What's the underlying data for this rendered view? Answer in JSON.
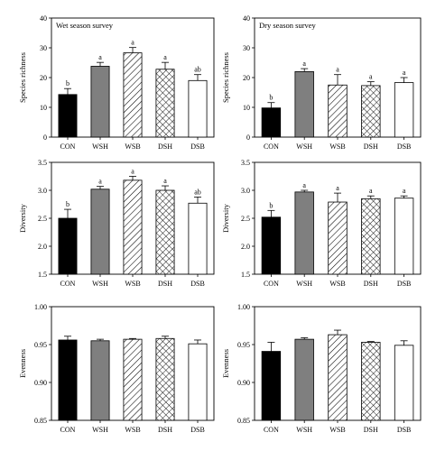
{
  "categories": [
    "CON",
    "WSH",
    "WSB",
    "DSH",
    "DSB"
  ],
  "colors": {
    "CON": "#000000",
    "WSH": "#7f7f7f",
    "WSB": "#ffffff",
    "DSH": "#ffffff",
    "DSB": "#ffffff"
  },
  "patterns": {
    "CON": "solid",
    "WSH": "solid-gray",
    "WSB": "diagonal-hatch",
    "DSH": "crosshatch",
    "DSB": "none"
  },
  "chart_data": [
    {
      "type": "bar",
      "title": "Wet season survey",
      "ylabel": "Species richness",
      "ylim": [
        0,
        40
      ],
      "yticks": [
        "0",
        "10",
        "20",
        "30",
        "40"
      ],
      "categories": [
        "CON",
        "WSH",
        "WSB",
        "DSH",
        "DSB"
      ],
      "values": [
        14.3,
        23.8,
        28.3,
        22.8,
        19.0
      ],
      "errors": [
        2.0,
        1.3,
        1.8,
        2.3,
        2.0
      ],
      "letters": [
        "b",
        "a",
        "a",
        "a",
        "ab"
      ]
    },
    {
      "type": "bar",
      "title": "Dry season survey",
      "ylabel": "Species richness",
      "ylim": [
        0,
        40
      ],
      "yticks": [
        "0",
        "10",
        "20",
        "30",
        "40"
      ],
      "categories": [
        "CON",
        "WSH",
        "WSB",
        "DSH",
        "DSB"
      ],
      "values": [
        9.8,
        22.0,
        17.5,
        17.3,
        18.3
      ],
      "errors": [
        1.8,
        1.0,
        3.5,
        1.3,
        1.7
      ],
      "letters": [
        "b",
        "a",
        "a",
        "a",
        "a"
      ]
    },
    {
      "type": "bar",
      "title": "",
      "ylabel": "Diversity",
      "ylim": [
        1.5,
        3.5
      ],
      "yticks": [
        "1.5",
        "2.0",
        "2.5",
        "3.0",
        "3.5"
      ],
      "categories": [
        "CON",
        "WSH",
        "WSB",
        "DSH",
        "DSB"
      ],
      "values": [
        2.5,
        3.02,
        3.18,
        3.0,
        2.77
      ],
      "errors": [
        0.16,
        0.05,
        0.07,
        0.08,
        0.11
      ],
      "letters": [
        "b",
        "a",
        "a",
        "a",
        "ab"
      ]
    },
    {
      "type": "bar",
      "title": "",
      "ylabel": "Diversity",
      "ylim": [
        1.5,
        3.5
      ],
      "yticks": [
        "1.5",
        "2.0",
        "2.5",
        "3.0",
        "3.5"
      ],
      "categories": [
        "CON",
        "WSH",
        "WSB",
        "DSH",
        "DSB"
      ],
      "values": [
        2.52,
        2.97,
        2.79,
        2.85,
        2.86
      ],
      "errors": [
        0.12,
        0.03,
        0.16,
        0.05,
        0.04
      ],
      "letters": [
        "b",
        "a",
        "a",
        "a",
        "a"
      ]
    },
    {
      "type": "bar",
      "title": "",
      "ylabel": "Evenness",
      "ylim": [
        0.85,
        1.0
      ],
      "yticks": [
        "0.85",
        "0.90",
        "0.95",
        "1.00"
      ],
      "categories": [
        "CON",
        "WSH",
        "WSB",
        "DSH",
        "DSB"
      ],
      "values": [
        0.956,
        0.955,
        0.957,
        0.958,
        0.951
      ],
      "errors": [
        0.005,
        0.002,
        0.001,
        0.003,
        0.005
      ],
      "letters": [
        "",
        "",
        "",
        "",
        ""
      ]
    },
    {
      "type": "bar",
      "title": "",
      "ylabel": "Evenness",
      "ylim": [
        0.85,
        1.0
      ],
      "yticks": [
        "0.85",
        "0.90",
        "0.95",
        "1.00"
      ],
      "categories": [
        "CON",
        "WSH",
        "WSB",
        "DSH",
        "DSB"
      ],
      "values": [
        0.941,
        0.957,
        0.963,
        0.953,
        0.949
      ],
      "errors": [
        0.012,
        0.002,
        0.006,
        0.001,
        0.006
      ],
      "letters": [
        "",
        "",
        "",
        "",
        ""
      ]
    }
  ]
}
